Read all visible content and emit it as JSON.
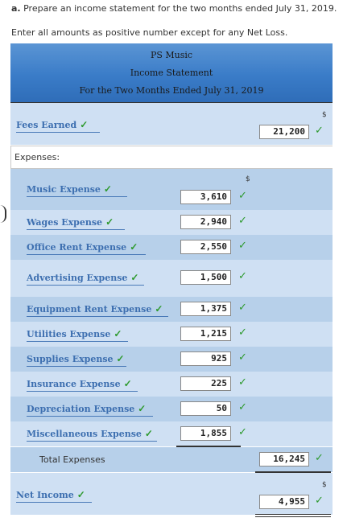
{
  "instructions": {
    "part_label": "a.",
    "line1": "Prepare an income statement for the two months ended July 31, 2019.",
    "line2": "Enter all amounts as positive number except for any Net Loss."
  },
  "statement": {
    "company": "PS Music",
    "title": "Income Statement",
    "period": "For the Two Months Ended July 31, 2019"
  },
  "fees_earned": {
    "label": "Fees Earned",
    "value": "21,200"
  },
  "expenses_label": "Expenses:",
  "currency_symbol": "$",
  "check_mark": "✓",
  "expenses": [
    {
      "label": "Music Expense",
      "value": "3,610"
    },
    {
      "label": "Wages Expense",
      "value": "2,940"
    },
    {
      "label": "Office Rent Expense",
      "value": "2,550"
    },
    {
      "label": "Advertising Expense",
      "value": "1,500"
    },
    {
      "label": "Equipment Rent Expense",
      "value": "1,375"
    },
    {
      "label": "Utilities Expense",
      "value": "1,215"
    },
    {
      "label": "Supplies Expense",
      "value": "925"
    },
    {
      "label": "Insurance Expense",
      "value": "225"
    },
    {
      "label": "Depreciation Expense",
      "value": "50"
    },
    {
      "label": "Miscellaneous Expense",
      "value": "1,855"
    }
  ],
  "total_expenses": {
    "label": "Total Expenses",
    "value": "16,245"
  },
  "net_income": {
    "label": "Net Income",
    "value": "4,955"
  }
}
